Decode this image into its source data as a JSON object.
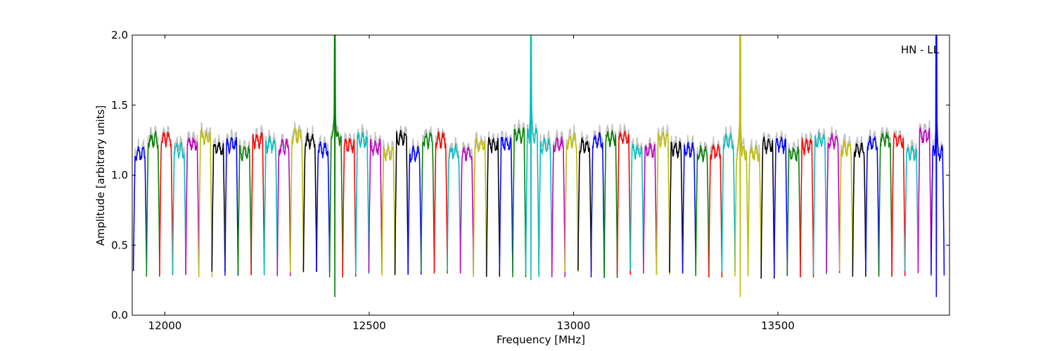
{
  "chart_data": {
    "type": "line",
    "title": "",
    "xlabel": "Frequency [MHz]",
    "ylabel": "Amplitude [arbitrary units]",
    "xlim": [
      11920,
      13920
    ],
    "ylim": [
      0.0,
      2.0
    ],
    "x_ticks": [
      12000,
      12500,
      13000,
      13500
    ],
    "y_ticks": [
      0.0,
      0.5,
      1.0,
      1.5,
      2.0
    ],
    "x_tick_labels": [
      "12000",
      "12500",
      "13000",
      "13500"
    ],
    "y_tick_labels": [
      "0.0",
      "0.5",
      "1.0",
      "1.5",
      "2.0"
    ],
    "annotation": "HN - LL",
    "grid": false,
    "color_cycle": [
      "#0000ff",
      "#008000",
      "#ff0000",
      "#00bfbf",
      "#bf00bf",
      "#bfbf00",
      "#000000"
    ],
    "background_color": "#c0c0c0",
    "channel_width_mhz": 32,
    "channel_start_mhz": 11923,
    "channel_count": 62,
    "typical_peak": 1.22,
    "typical_dip": 0.29,
    "spikes": [
      {
        "x": 12408,
        "y": 2.0,
        "min": 0.13,
        "color": "#008000"
      },
      {
        "x": 12913,
        "y": 2.0,
        "min": 0.25,
        "color": "#00bfbf"
      },
      {
        "x": 13410,
        "y": 2.0,
        "min": 0.13,
        "color": "#bfbf00"
      },
      {
        "x": 13895,
        "y": 2.0,
        "min": 0.13,
        "color": "#0000ff"
      }
    ]
  }
}
